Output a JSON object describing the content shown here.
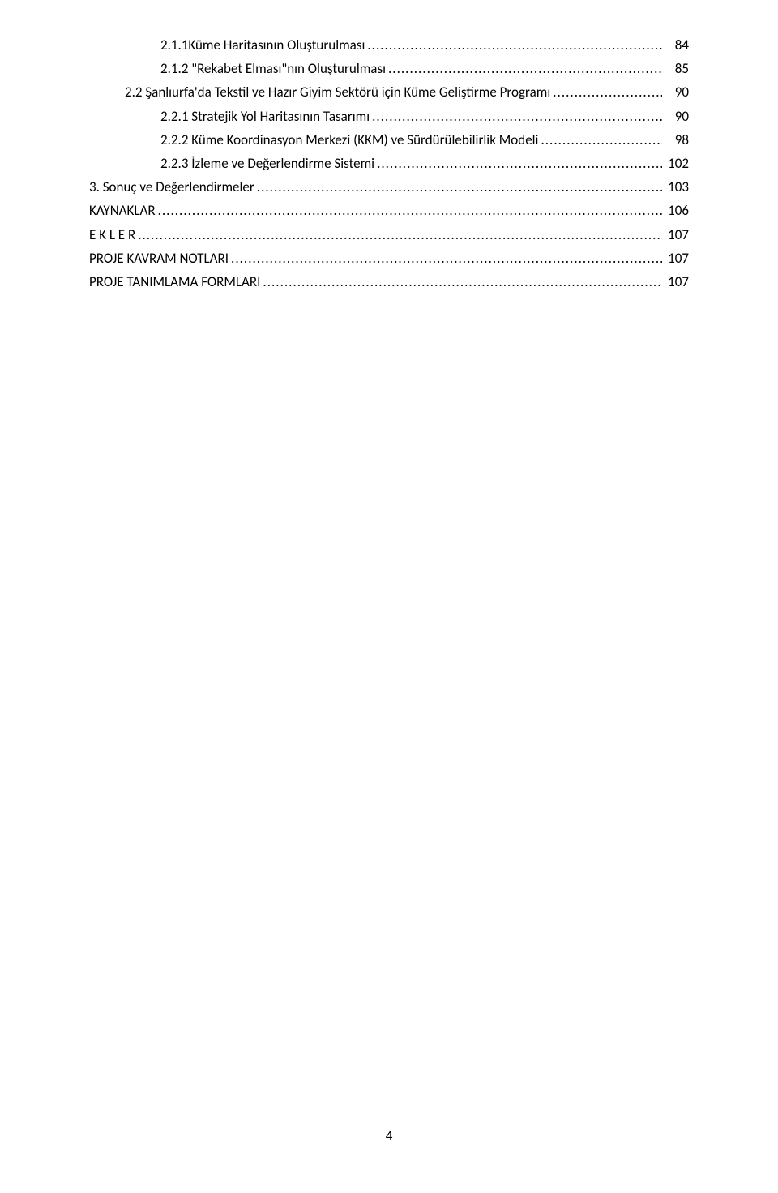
{
  "toc": {
    "entries": [
      {
        "indent": 2,
        "label": "2.1.1Küme Haritasının Oluşturulması",
        "page": "84"
      },
      {
        "indent": 2,
        "label": "2.1.2 \"Rekabet Elması\"nın Oluşturulması",
        "page": "85"
      },
      {
        "indent": 1,
        "label": "2.2 Şanlıurfa'da Tekstil ve Hazır Giyim Sektörü için Küme Geliştirme Programı",
        "page": "90"
      },
      {
        "indent": 2,
        "label": "2.2.1 Stratejik Yol Haritasının Tasarımı",
        "page": "90"
      },
      {
        "indent": 2,
        "label": "2.2.2 Küme Koordinasyon Merkezi (KKM) ve Sürdürülebilirlik Modeli",
        "page": "98"
      },
      {
        "indent": 2,
        "label": "2.2.3 İzleme ve Değerlendirme Sistemi",
        "page": "102"
      },
      {
        "indent": 0,
        "label": "3.    Sonuç ve Değerlendirmeler",
        "page": "103"
      },
      {
        "indent": 0,
        "label": "KAYNAKLAR",
        "page": "106"
      },
      {
        "indent": 0,
        "label": "E K L E R",
        "page": "107"
      },
      {
        "indent": 0,
        "label": "PROJE KAVRAM NOTLARI",
        "page": "107"
      },
      {
        "indent": 0,
        "label": "PROJE TANIMLAMA FORMLARI",
        "page": "107"
      }
    ]
  },
  "pageNumber": "4"
}
